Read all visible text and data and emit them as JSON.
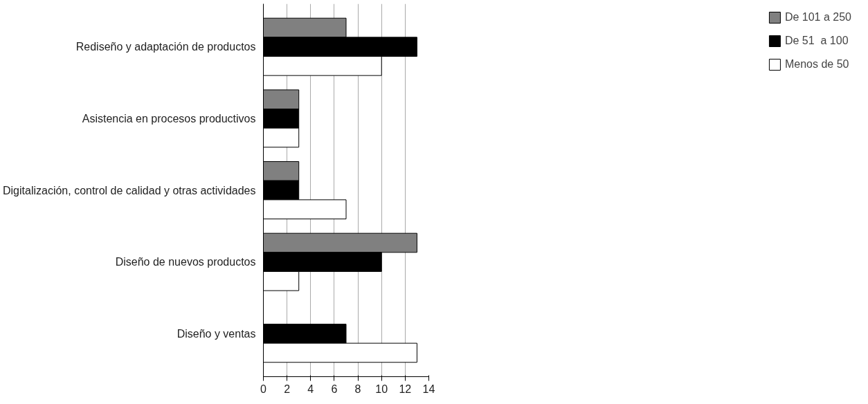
{
  "chart_data": {
    "type": "bar",
    "orientation": "horizontal",
    "categories": [
      "Rediseño y adaptación de productos",
      "Asistencia en procesos productivos",
      "Digitalización, control de calidad y otras actividades",
      "Diseño de nuevos productos",
      "Diseño y ventas"
    ],
    "series": [
      {
        "name": "De 101 a 250",
        "color": "#808080",
        "values": [
          7,
          3,
          3,
          13,
          null
        ]
      },
      {
        "name": "De 51  a 100",
        "color": "#000000",
        "values": [
          13,
          3,
          3,
          10,
          7
        ]
      },
      {
        "name": "Menos de 50",
        "color": "#ffffff",
        "values": [
          10,
          3,
          7,
          3,
          13
        ]
      }
    ],
    "xlim": [
      0,
      14
    ],
    "xticks": [
      0,
      2,
      4,
      6,
      8,
      10,
      12,
      14
    ],
    "grid": "x",
    "legend": "right"
  }
}
